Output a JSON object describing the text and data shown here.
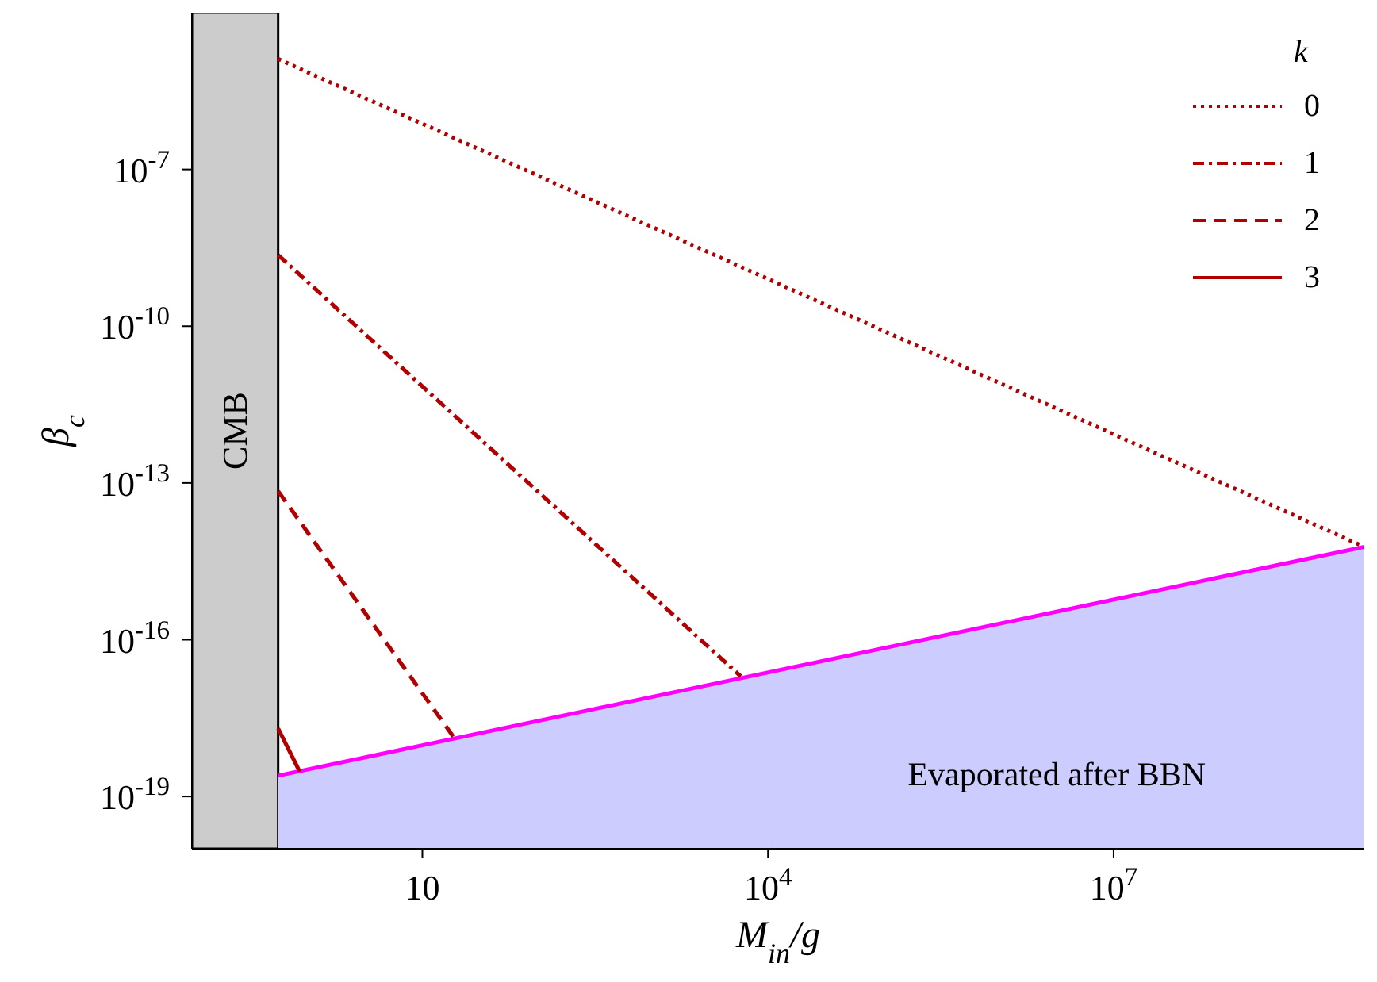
{
  "chart_data": {
    "type": "line",
    "xlabel": "M$_{in}$/g",
    "ylabel": "β$_{c}$",
    "legend_title": "k",
    "legend": "top right",
    "log": "xy",
    "xlim": [
      0.1,
      1500000000.0
    ],
    "xticks": [
      10,
      {
        "value": 10000,
        "label": "10$^{4}$"
      },
      {
        "value": 10000000,
        "label": "10$^{7}$"
      }
    ],
    "ylim": [
      1e-20,
      0.0001
    ],
    "yticks": [
      {
        "value": 1e-07,
        "label": "10$^{-7}$"
      },
      {
        "value": 1e-10,
        "label": "10$^{-10}$"
      },
      {
        "value": 1e-13,
        "label": "10$^{-13}$"
      },
      {
        "value": 1e-16,
        "label": "10$^{-16}$"
      },
      {
        "value": 1e-19,
        "label": "10$^{-19}$"
      }
    ],
    "bands": [
      {
        "axis": "x",
        "from": 0.1,
        "to": 0.56,
        "label": "CMB",
        "color": "#cccccc"
      }
    ],
    "series": [
      {
        "type": "area",
        "name": "Evaporated after BBN",
        "color": "#ccccff",
        "line_style": "solid",
        "x": [
          0.56,
          1500000000.0
        ],
        "values": [
          2.5e-19,
          6e-15
        ]
      },
      {
        "name": "0",
        "color": "#b00000",
        "line_style": "dotted",
        "x": [
          0.56,
          1500000000.0
        ],
        "values": [
          1.3e-05,
          6e-15
        ]
      },
      {
        "name": "1",
        "color": "#b00000",
        "line_style": "dashdot",
        "x": [
          0.56,
          5800
        ],
        "values": [
          2.3e-09,
          2e-17
        ]
      },
      {
        "name": "2",
        "color": "#b00000",
        "line_style": "dashed",
        "x": [
          0.56,
          19
        ],
        "values": [
          7e-14,
          1.3e-18
        ]
      },
      {
        "name": "3",
        "color": "#b00000",
        "line_style": "solid",
        "x": [
          0.56,
          0.86
        ],
        "values": [
          2e-18,
          3e-19
        ]
      }
    ]
  }
}
